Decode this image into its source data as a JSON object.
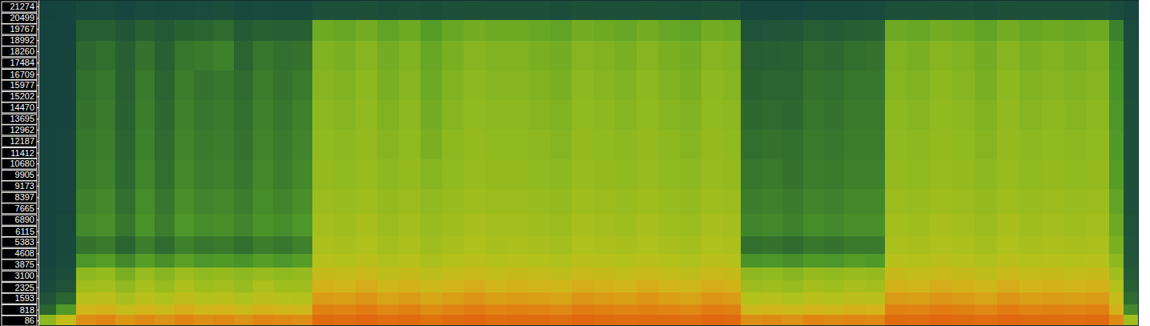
{
  "chart_data": {
    "type": "heatmap",
    "tick_labels": "y",
    "xlim": [
      0,
      1374
    ],
    "ylim": [
      -290,
      21710
    ],
    "yticks": [
      86,
      818,
      1593,
      2325,
      3100,
      3875,
      4608,
      5383,
      6115,
      6890,
      7665,
      8397,
      9173,
      9905,
      10680,
      11412,
      12187,
      12962,
      13695,
      14470,
      15202,
      15977,
      16709,
      17484,
      18260,
      18992,
      19767,
      20499,
      21274
    ],
    "zlim": [
      0,
      100
    ],
    "xbins": [
      0,
      22,
      47,
      72,
      96,
      121,
      145,
      170,
      194,
      219,
      244,
      268,
      293,
      317,
      342,
      369,
      396,
      423,
      450,
      477,
      504,
      531,
      558,
      585,
      612,
      639,
      666,
      693,
      720,
      747,
      774,
      801,
      828,
      855,
      877,
      903,
      929,
      955,
      981,
      1006,
      1032,
      1057,
      1085,
      1113,
      1141,
      1169,
      1197,
      1225,
      1253,
      1281,
      1309,
      1337,
      1355,
      1374
    ],
    "ybins": [
      -290,
      500,
      1200,
      2000,
      2800,
      3700,
      4600,
      5800,
      7300,
      9000,
      11000,
      13000,
      15000,
      17000,
      19000,
      20400,
      21710
    ],
    "cells": [
      [
        55,
        30,
        20,
        15,
        13,
        12,
        12,
        12,
        12,
        12,
        12,
        11,
        11,
        11,
        10,
        9
      ],
      [
        70,
        45,
        30,
        20,
        17,
        15,
        14,
        14,
        13,
        13,
        13,
        12,
        12,
        12,
        11,
        10
      ],
      [
        84,
        74,
        66,
        60,
        55,
        44,
        34,
        40,
        38,
        36,
        35,
        34,
        33,
        31,
        26,
        14
      ],
      [
        86,
        76,
        68,
        61,
        57,
        46,
        36,
        42,
        40,
        38,
        37,
        36,
        35,
        33,
        27,
        15
      ],
      [
        82,
        70,
        62,
        56,
        52,
        40,
        30,
        35,
        33,
        31,
        30,
        29,
        28,
        27,
        22,
        13
      ],
      [
        85,
        75,
        67,
        62,
        58,
        46,
        37,
        43,
        41,
        39,
        38,
        37,
        36,
        34,
        28,
        15
      ],
      [
        83,
        72,
        64,
        58,
        54,
        42,
        32,
        37,
        35,
        33,
        32,
        31,
        30,
        28,
        24,
        14
      ],
      [
        86,
        77,
        69,
        63,
        59,
        47,
        38,
        44,
        42,
        40,
        39,
        38,
        37,
        35,
        29,
        15
      ],
      [
        84,
        74,
        66,
        60,
        56,
        44,
        35,
        41,
        39,
        37,
        36,
        35,
        34,
        36,
        30,
        16
      ],
      [
        85,
        75,
        67,
        61,
        57,
        45,
        36,
        42,
        40,
        38,
        37,
        36,
        35,
        38,
        32,
        17
      ],
      [
        83,
        72,
        64,
        58,
        55,
        43,
        33,
        39,
        37,
        35,
        34,
        33,
        32,
        30,
        25,
        14
      ],
      [
        86,
        76,
        68,
        63,
        58,
        46,
        37,
        43,
        41,
        40,
        39,
        38,
        37,
        35,
        28,
        15
      ],
      [
        85,
        74,
        66,
        60,
        56,
        44,
        35,
        41,
        39,
        37,
        36,
        35,
        34,
        33,
        27,
        14
      ],
      [
        84,
        73,
        65,
        60,
        57,
        46,
        38,
        44,
        42,
        40,
        39,
        38,
        36,
        34,
        27,
        14
      ],
      [
        93,
        87,
        81,
        76,
        71,
        66,
        63,
        61,
        59,
        57,
        56,
        55,
        54,
        53,
        50,
        18
      ],
      [
        92,
        86,
        80,
        75,
        70,
        65,
        62,
        60,
        58,
        56,
        55,
        54,
        53,
        52,
        49,
        18
      ],
      [
        94,
        88,
        82,
        77,
        72,
        67,
        64,
        62,
        60,
        58,
        57,
        56,
        55,
        54,
        51,
        19
      ],
      [
        92,
        85,
        79,
        74,
        69,
        64,
        61,
        59,
        57,
        55,
        54,
        53,
        52,
        51,
        48,
        17
      ],
      [
        93,
        87,
        81,
        76,
        71,
        66,
        63,
        61,
        59,
        57,
        56,
        55,
        54,
        53,
        50,
        18
      ],
      [
        91,
        84,
        78,
        73,
        68,
        63,
        60,
        58,
        56,
        54,
        52,
        51,
        50,
        49,
        46,
        17
      ],
      [
        93,
        86,
        80,
        75,
        70,
        65,
        62,
        60,
        58,
        56,
        55,
        54,
        53,
        52,
        49,
        18
      ],
      [
        94,
        88,
        82,
        77,
        72,
        67,
        64,
        62,
        60,
        58,
        57,
        56,
        55,
        54,
        51,
        19
      ],
      [
        92,
        86,
        80,
        75,
        70,
        65,
        62,
        61,
        59,
        57,
        56,
        55,
        54,
        53,
        50,
        18
      ],
      [
        93,
        87,
        81,
        76,
        71,
        66,
        63,
        61,
        59,
        57,
        56,
        55,
        54,
        53,
        50,
        18
      ],
      [
        93,
        86,
        80,
        75,
        70,
        65,
        62,
        60,
        58,
        56,
        55,
        54,
        53,
        52,
        49,
        18
      ],
      [
        92,
        85,
        79,
        74,
        69,
        64,
        61,
        59,
        57,
        55,
        54,
        53,
        52,
        51,
        48,
        17
      ],
      [
        94,
        88,
        82,
        77,
        72,
        67,
        64,
        62,
        60,
        58,
        57,
        56,
        55,
        54,
        51,
        19
      ],
      [
        93,
        87,
        81,
        76,
        71,
        66,
        63,
        61,
        59,
        57,
        56,
        55,
        54,
        53,
        50,
        18
      ],
      [
        92,
        86,
        80,
        75,
        70,
        65,
        62,
        60,
        58,
        56,
        55,
        54,
        53,
        52,
        49,
        18
      ],
      [
        93,
        87,
        82,
        77,
        72,
        67,
        64,
        62,
        60,
        58,
        57,
        56,
        55,
        54,
        51,
        19
      ],
      [
        93,
        86,
        80,
        75,
        70,
        65,
        62,
        60,
        58,
        56,
        55,
        54,
        53,
        52,
        49,
        18
      ],
      [
        92,
        85,
        79,
        74,
        69,
        64,
        61,
        59,
        57,
        55,
        54,
        53,
        52,
        51,
        48,
        17
      ],
      [
        94,
        88,
        82,
        77,
        72,
        67,
        64,
        62,
        60,
        58,
        57,
        56,
        55,
        54,
        51,
        19
      ],
      [
        93,
        87,
        81,
        76,
        71,
        66,
        63,
        61,
        59,
        57,
        56,
        55,
        54,
        53,
        50,
        18
      ],
      [
        84,
        73,
        65,
        59,
        55,
        43,
        33,
        39,
        37,
        35,
        33,
        31,
        29,
        26,
        20,
        13
      ],
      [
        85,
        74,
        66,
        60,
        56,
        44,
        34,
        40,
        38,
        36,
        34,
        32,
        30,
        27,
        21,
        13
      ],
      [
        83,
        72,
        64,
        58,
        54,
        42,
        32,
        38,
        36,
        34,
        33,
        31,
        30,
        28,
        22,
        13
      ],
      [
        86,
        75,
        67,
        61,
        57,
        45,
        35,
        41,
        39,
        37,
        36,
        35,
        34,
        32,
        26,
        14
      ],
      [
        85,
        74,
        66,
        60,
        56,
        44,
        34,
        40,
        38,
        36,
        35,
        34,
        33,
        31,
        25,
        14
      ],
      [
        86,
        76,
        68,
        62,
        58,
        46,
        36,
        42,
        40,
        38,
        37,
        36,
        35,
        33,
        27,
        14
      ],
      [
        85,
        75,
        67,
        61,
        57,
        45,
        36,
        42,
        40,
        38,
        37,
        36,
        35,
        34,
        28,
        15
      ],
      [
        93,
        87,
        81,
        76,
        71,
        66,
        63,
        61,
        59,
        57,
        56,
        55,
        54,
        53,
        50,
        18
      ],
      [
        92,
        86,
        80,
        75,
        70,
        65,
        62,
        60,
        58,
        56,
        55,
        54,
        53,
        52,
        49,
        18
      ],
      [
        94,
        88,
        82,
        77,
        72,
        67,
        64,
        62,
        60,
        58,
        57,
        56,
        55,
        54,
        51,
        19
      ],
      [
        93,
        87,
        81,
        76,
        71,
        66,
        63,
        61,
        59,
        57,
        56,
        55,
        54,
        53,
        50,
        18
      ],
      [
        92,
        85,
        79,
        74,
        69,
        64,
        61,
        59,
        57,
        55,
        54,
        53,
        52,
        51,
        48,
        17
      ],
      [
        94,
        88,
        82,
        77,
        72,
        67,
        64,
        62,
        60,
        58,
        57,
        56,
        55,
        54,
        51,
        19
      ],
      [
        93,
        86,
        80,
        75,
        70,
        65,
        62,
        60,
        58,
        56,
        55,
        54,
        53,
        52,
        49,
        18
      ],
      [
        93,
        87,
        81,
        76,
        71,
        66,
        63,
        61,
        59,
        57,
        56,
        55,
        54,
        53,
        50,
        18
      ],
      [
        92,
        86,
        80,
        75,
        70,
        65,
        62,
        60,
        58,
        56,
        55,
        54,
        53,
        52,
        49,
        18
      ],
      [
        93,
        87,
        81,
        76,
        71,
        66,
        63,
        61,
        59,
        57,
        56,
        55,
        54,
        53,
        50,
        18
      ],
      [
        85,
        76,
        70,
        65,
        60,
        55,
        52,
        50,
        48,
        46,
        45,
        44,
        43,
        42,
        38,
        16
      ],
      [
        60,
        40,
        32,
        27,
        24,
        22,
        21,
        20,
        19,
        19,
        18,
        18,
        17,
        17,
        16,
        13
      ]
    ]
  }
}
